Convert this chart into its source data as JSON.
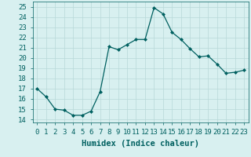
{
  "x": [
    0,
    1,
    2,
    3,
    4,
    5,
    6,
    7,
    8,
    9,
    10,
    11,
    12,
    13,
    14,
    15,
    16,
    17,
    18,
    19,
    20,
    21,
    22,
    23
  ],
  "y": [
    17.0,
    16.2,
    15.0,
    14.9,
    14.4,
    14.4,
    14.8,
    16.7,
    21.1,
    20.8,
    21.3,
    21.8,
    21.8,
    24.9,
    24.3,
    22.5,
    21.8,
    20.9,
    20.1,
    20.2,
    19.4,
    18.5,
    18.6,
    18.8
  ],
  "line_color": "#006060",
  "marker": "D",
  "marker_size": 2.0,
  "xlabel": "Humidex (Indice chaleur)",
  "ylabel_ticks": [
    14,
    15,
    16,
    17,
    18,
    19,
    20,
    21,
    22,
    23,
    24,
    25
  ],
  "ylim": [
    13.7,
    25.5
  ],
  "xlim": [
    -0.5,
    23.5
  ],
  "bg_color": "#d8f0f0",
  "grid_color": "#b8d8d8",
  "font_color": "#006060",
  "xlabel_fontsize": 7.5,
  "tick_fontsize": 6.5
}
